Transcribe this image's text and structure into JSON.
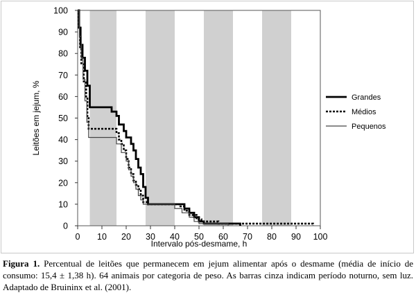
{
  "chart_data": {
    "type": "line",
    "step": true,
    "xlabel": "Intervalo pós-desmame, h",
    "ylabel": "Leitões em jejum, %",
    "xlim": [
      0,
      100
    ],
    "ylim": [
      0,
      100
    ],
    "xticks": [
      0,
      10,
      20,
      30,
      40,
      50,
      60,
      70,
      80,
      90,
      100
    ],
    "yticks": [
      0,
      10,
      20,
      30,
      40,
      50,
      60,
      70,
      80,
      90,
      100
    ],
    "shaded_bands": [
      [
        5,
        16
      ],
      [
        28,
        40
      ],
      [
        52,
        64
      ],
      [
        76,
        88
      ]
    ],
    "shaded_band_color": "#d0d0d0",
    "legend_position": "right",
    "series": [
      {
        "name": "Grandes",
        "style": "solid-thick",
        "points": [
          [
            0,
            100
          ],
          [
            0.6,
            100
          ],
          [
            0.6,
            92
          ],
          [
            1.2,
            92
          ],
          [
            1.2,
            84
          ],
          [
            2,
            84
          ],
          [
            2,
            78
          ],
          [
            3,
            78
          ],
          [
            3,
            72
          ],
          [
            4,
            72
          ],
          [
            4,
            65
          ],
          [
            5,
            65
          ],
          [
            5,
            55
          ],
          [
            10,
            55
          ],
          [
            14,
            55
          ],
          [
            14,
            53
          ],
          [
            16,
            53
          ],
          [
            16,
            51
          ],
          [
            17,
            51
          ],
          [
            17,
            47
          ],
          [
            19,
            47
          ],
          [
            19,
            44
          ],
          [
            20,
            44
          ],
          [
            20,
            41
          ],
          [
            22,
            41
          ],
          [
            22,
            38
          ],
          [
            23,
            38
          ],
          [
            23,
            35
          ],
          [
            24,
            35
          ],
          [
            24,
            31
          ],
          [
            25,
            31
          ],
          [
            25,
            27
          ],
          [
            26,
            27
          ],
          [
            26,
            24
          ],
          [
            27,
            24
          ],
          [
            27,
            18
          ],
          [
            28,
            18
          ],
          [
            28,
            13
          ],
          [
            29,
            13
          ],
          [
            29,
            10
          ],
          [
            44,
            10
          ],
          [
            44,
            8
          ],
          [
            46,
            8
          ],
          [
            46,
            6
          ],
          [
            48,
            6
          ],
          [
            48,
            4
          ],
          [
            50,
            4
          ],
          [
            50,
            2
          ],
          [
            52,
            2
          ],
          [
            52,
            1
          ],
          [
            67,
            1
          ],
          [
            67,
            0
          ]
        ]
      },
      {
        "name": "Médios",
        "style": "dashed-thick",
        "points": [
          [
            0,
            100
          ],
          [
            0.5,
            100
          ],
          [
            0.5,
            91
          ],
          [
            1,
            91
          ],
          [
            1,
            82
          ],
          [
            1.5,
            82
          ],
          [
            1.5,
            75
          ],
          [
            2.5,
            75
          ],
          [
            2.5,
            67
          ],
          [
            3.5,
            67
          ],
          [
            3.5,
            60
          ],
          [
            4,
            60
          ],
          [
            4,
            50
          ],
          [
            4.5,
            50
          ],
          [
            4.5,
            45
          ],
          [
            16,
            45
          ],
          [
            16,
            43
          ],
          [
            17,
            43
          ],
          [
            17,
            40
          ],
          [
            18,
            40
          ],
          [
            18,
            38
          ],
          [
            19,
            38
          ],
          [
            19,
            35
          ],
          [
            20,
            35
          ],
          [
            20,
            31
          ],
          [
            21,
            31
          ],
          [
            21,
            27
          ],
          [
            22,
            27
          ],
          [
            22,
            24
          ],
          [
            23,
            24
          ],
          [
            23,
            21
          ],
          [
            24,
            21
          ],
          [
            24,
            19
          ],
          [
            25,
            19
          ],
          [
            25,
            17
          ],
          [
            26,
            17
          ],
          [
            26,
            14
          ],
          [
            27,
            14
          ],
          [
            27,
            11
          ],
          [
            29,
            11
          ],
          [
            29,
            10
          ],
          [
            42,
            10
          ],
          [
            42,
            9
          ],
          [
            44,
            9
          ],
          [
            44,
            7
          ],
          [
            46,
            7
          ],
          [
            46,
            5
          ],
          [
            49,
            5
          ],
          [
            49,
            3
          ],
          [
            51,
            3
          ],
          [
            51,
            2
          ],
          [
            58,
            2
          ],
          [
            58,
            1
          ],
          [
            97,
            1
          ],
          [
            97,
            0
          ]
        ]
      },
      {
        "name": "Pequenos",
        "style": "solid-thin",
        "points": [
          [
            0,
            100
          ],
          [
            0.7,
            100
          ],
          [
            0.7,
            88
          ],
          [
            1.5,
            88
          ],
          [
            1.5,
            78
          ],
          [
            2.2,
            78
          ],
          [
            2.2,
            68
          ],
          [
            3,
            68
          ],
          [
            3,
            58
          ],
          [
            3.8,
            58
          ],
          [
            3.8,
            48
          ],
          [
            4.5,
            48
          ],
          [
            4.5,
            41
          ],
          [
            16,
            41
          ],
          [
            16,
            38
          ],
          [
            18,
            38
          ],
          [
            18,
            34
          ],
          [
            20,
            34
          ],
          [
            20,
            30
          ],
          [
            21,
            30
          ],
          [
            21,
            26
          ],
          [
            22,
            26
          ],
          [
            22,
            23
          ],
          [
            23,
            23
          ],
          [
            23,
            20
          ],
          [
            24,
            20
          ],
          [
            24,
            17
          ],
          [
            25,
            17
          ],
          [
            25,
            14
          ],
          [
            26,
            14
          ],
          [
            26,
            12
          ],
          [
            27,
            12
          ],
          [
            27,
            10
          ],
          [
            40,
            10
          ],
          [
            40,
            8
          ],
          [
            43,
            8
          ],
          [
            43,
            6
          ],
          [
            46,
            6
          ],
          [
            46,
            4
          ],
          [
            48,
            4
          ],
          [
            48,
            2
          ],
          [
            50,
            2
          ],
          [
            50,
            1
          ],
          [
            62,
            1
          ],
          [
            62,
            0
          ]
        ]
      }
    ]
  },
  "caption": {
    "label": "Figura 1.",
    "text": " Percentual de leitões que permanecem em jejum alimentar após o desmame (média de início de consumo: 15,4 ± 1,38 h). 64 animais por categoria de peso. As barras cinza indicam período noturno, sem luz. Adaptado de Bruininx et al. (2001)."
  }
}
